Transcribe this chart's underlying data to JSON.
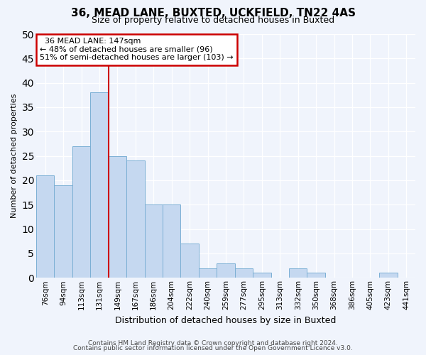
{
  "title_line1": "36, MEAD LANE, BUXTED, UCKFIELD, TN22 4AS",
  "title_line2": "Size of property relative to detached houses in Buxted",
  "xlabel": "Distribution of detached houses by size in Buxted",
  "ylabel": "Number of detached properties",
  "categories": [
    "76sqm",
    "94sqm",
    "113sqm",
    "131sqm",
    "149sqm",
    "167sqm",
    "186sqm",
    "204sqm",
    "222sqm",
    "240sqm",
    "259sqm",
    "277sqm",
    "295sqm",
    "313sqm",
    "332sqm",
    "350sqm",
    "368sqm",
    "386sqm",
    "405sqm",
    "423sqm",
    "441sqm"
  ],
  "values": [
    21,
    19,
    27,
    38,
    25,
    24,
    15,
    15,
    7,
    2,
    3,
    2,
    1,
    0,
    2,
    1,
    0,
    0,
    0,
    1,
    0
  ],
  "bar_color": "#c5d8f0",
  "bar_edge_color": "#7bafd4",
  "marker_label": "36 MEAD LANE: 147sqm",
  "pct_smaller": "48% of detached houses are smaller (96)",
  "pct_larger": "51% of semi-detached houses are larger (103)",
  "annotation_box_color": "#ffffff",
  "annotation_box_edge": "#cc0000",
  "marker_line_color": "#cc0000",
  "ylim": [
    0,
    50
  ],
  "yticks": [
    0,
    5,
    10,
    15,
    20,
    25,
    30,
    35,
    40,
    45,
    50
  ],
  "footer1": "Contains HM Land Registry data © Crown copyright and database right 2024.",
  "footer2": "Contains public sector information licensed under the Open Government Licence v3.0.",
  "bg_color": "#f0f4fc",
  "plot_bg_color": "#f0f4fc",
  "grid_color": "#ffffff",
  "title1_fontsize": 11,
  "title2_fontsize": 9,
  "ylabel_fontsize": 8,
  "xlabel_fontsize": 9,
  "tick_fontsize": 7.5,
  "annotation_fontsize": 8,
  "footer_fontsize": 6.5
}
